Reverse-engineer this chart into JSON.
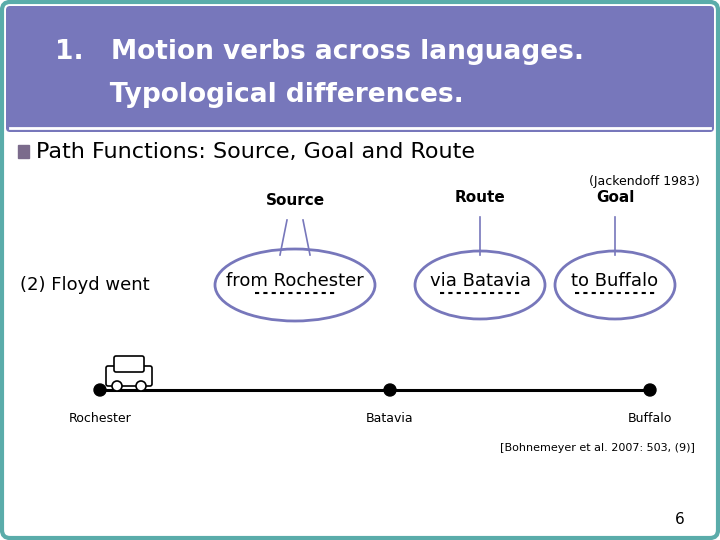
{
  "title_line1": "1.   Motion verbs across languages.",
  "title_line2": "      Typological differences.",
  "title_bg": "#7777BB",
  "title_text_color": "#FFFFFF",
  "slide_bg": "#FFFFFF",
  "border_color": "#5AACAA",
  "bullet_color": "#7B6B8C",
  "bullet_text": "Path Functions: Source, Goal and Route",
  "jackendoff": "(Jackendoff 1983)",
  "sentence": "(2) Floyd went",
  "phrase1": "from Rochester",
  "phrase2": "via Batavia",
  "phrase3": "to Buffalo",
  "label_source": "Source",
  "label_route": "Route",
  "label_goal": "Goal",
  "ellipse_color": "#7777BB",
  "city1_label": "Rochester",
  "city2_label": "Batavia",
  "city3_label": "Buffalo",
  "ref_text": "[Bohnemeyer et al. 2007: 503, (9)]",
  "page_number": "6"
}
